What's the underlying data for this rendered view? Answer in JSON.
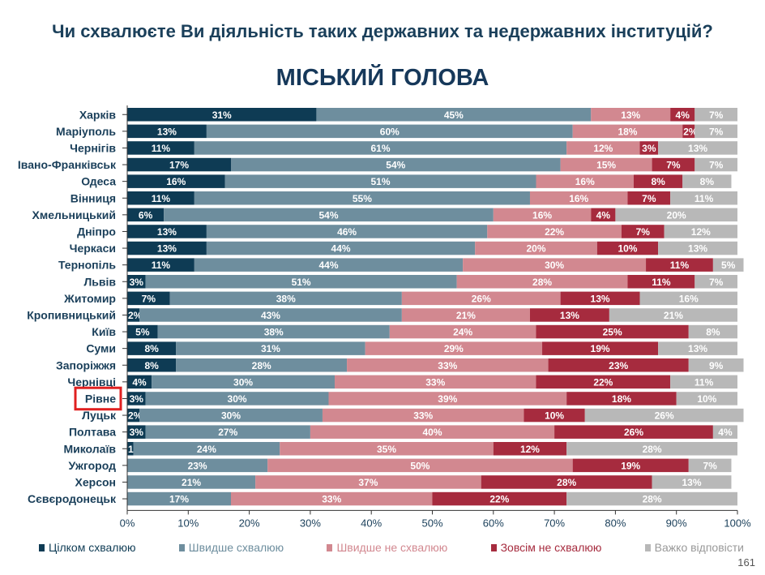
{
  "page": {
    "question": "Чи схвалюєте Ви діяльність таких державних та недержавних інституцій?",
    "page_number": "161"
  },
  "chart_data": {
    "type": "bar",
    "orientation": "horizontal",
    "stacked": true,
    "title": "МІСЬКИЙ ГОЛОВА",
    "categories": [
      "Харків",
      "Маріуполь",
      "Чернігів",
      "Івано-Франківськ",
      "Одеса",
      "Вінниця",
      "Хмельницький",
      "Дніпро",
      "Черкаси",
      "Тернопіль",
      "Львів",
      "Житомир",
      "Кропивницький",
      "Київ",
      "Суми",
      "Запоріжжя",
      "Чернівці",
      "Рівне",
      "Луцьк",
      "Полтава",
      "Миколаїв",
      "Ужгород",
      "Херсон",
      "Сєвєродонецьк"
    ],
    "highlighted_category": "Рівне",
    "xlim": [
      0,
      100
    ],
    "x_ticks": [
      "0%",
      "10%",
      "20%",
      "30%",
      "40%",
      "50%",
      "60%",
      "70%",
      "80%",
      "90%",
      "100%"
    ],
    "series": [
      {
        "name": "Цілком схвалюю",
        "color": "#0e3b54",
        "values": [
          31,
          13,
          11,
          17,
          16,
          11,
          6,
          13,
          13,
          11,
          3,
          7,
          2,
          5,
          8,
          8,
          4,
          3,
          2,
          3,
          1,
          0,
          0,
          0
        ],
        "labels": [
          "31%",
          "13%",
          "11%",
          "17%",
          "16%",
          "11%",
          "6%",
          "13%",
          "13%",
          "11%",
          "3%",
          "7%",
          "2%",
          "5%",
          "8%",
          "8%",
          "4%",
          "3%",
          "2%",
          "3%",
          "1%",
          "",
          "",
          ""
        ]
      },
      {
        "name": "Швидше схвалюю",
        "color": "#6e8e9e",
        "values": [
          45,
          60,
          61,
          54,
          51,
          55,
          54,
          46,
          44,
          44,
          51,
          38,
          43,
          38,
          31,
          28,
          30,
          30,
          30,
          27,
          24,
          23,
          21,
          17
        ],
        "labels": [
          "45%",
          "60%",
          "61%",
          "54%",
          "51%",
          "55%",
          "54%",
          "46%",
          "44%",
          "44%",
          "51%",
          "38%",
          "43%",
          "38%",
          "31%",
          "28%",
          "30%",
          "30%",
          "30%",
          "27%",
          "24%",
          "23%",
          "21%",
          "17%"
        ]
      },
      {
        "name": "Швидше не схвалюю",
        "color": "#d28890",
        "values": [
          13,
          18,
          12,
          15,
          16,
          16,
          16,
          22,
          20,
          30,
          28,
          26,
          21,
          24,
          29,
          33,
          33,
          39,
          33,
          40,
          35,
          50,
          37,
          33
        ],
        "labels": [
          "13%",
          "18%",
          "12%",
          "15%",
          "16%",
          "16%",
          "16%",
          "22%",
          "20%",
          "30%",
          "28%",
          "26%",
          "21%",
          "24%",
          "29%",
          "33%",
          "33%",
          "39%",
          "33%",
          "40%",
          "35%",
          "50%",
          "37%",
          "33%"
        ]
      },
      {
        "name": "Зовсім не схвалюю",
        "color": "#a62b3e",
        "values": [
          4,
          2,
          3,
          7,
          8,
          7,
          4,
          7,
          10,
          11,
          11,
          13,
          13,
          25,
          19,
          23,
          22,
          18,
          10,
          26,
          12,
          19,
          28,
          22
        ],
        "labels": [
          "4%",
          "2%",
          "3%",
          "7%",
          "8%",
          "7%",
          "4%",
          "7%",
          "10%",
          "11%",
          "11%",
          "13%",
          "13%",
          "25%",
          "19%",
          "23%",
          "22%",
          "18%",
          "10%",
          "26%",
          "12%",
          "19%",
          "28%",
          "22%"
        ]
      },
      {
        "name": "Важко відповісти",
        "color": "#b8b8b8",
        "values": [
          7,
          7,
          13,
          7,
          8,
          11,
          20,
          12,
          13,
          5,
          7,
          16,
          21,
          8,
          13,
          9,
          11,
          10,
          26,
          4,
          28,
          7,
          13,
          28
        ],
        "labels": [
          "7%",
          "7%",
          "13%",
          "7%",
          "8%",
          "11%",
          "20%",
          "12%",
          "13%",
          "5%",
          "7%",
          "16%",
          "21%",
          "8%",
          "13%",
          "9%",
          "11%",
          "10%",
          "26%",
          "4%",
          "28%",
          "7%",
          "13%",
          "28%"
        ]
      }
    ]
  }
}
